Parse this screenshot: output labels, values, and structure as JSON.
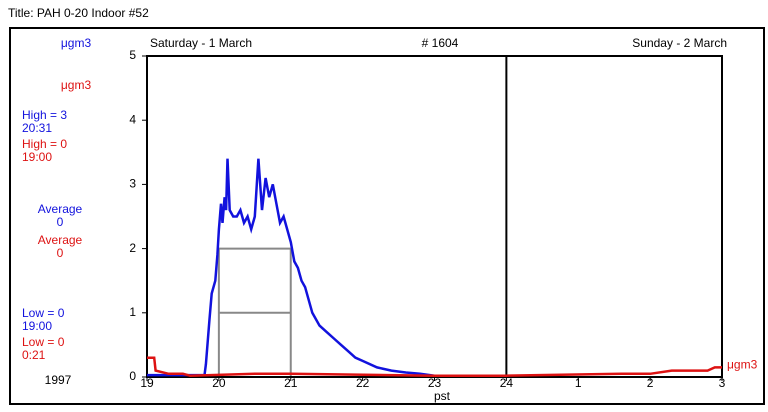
{
  "chart_data": {
    "type": "line",
    "title": "Title:  PAH 0-20 Indoor #52",
    "day_labels": [
      "Saturday - 1 March",
      "Sunday - 2 March"
    ],
    "record": "# 1604",
    "x_label": "pst",
    "year": "1997",
    "xlim": [
      19,
      27
    ],
    "xticks": [
      19,
      20,
      21,
      22,
      23,
      24,
      {
        "value": 25,
        "label": "1"
      },
      {
        "value": 26,
        "label": "2"
      },
      {
        "value": 27,
        "label": "3"
      }
    ],
    "ylim": [
      0,
      5
    ],
    "yticks": [
      0,
      1,
      2,
      3,
      4,
      5
    ],
    "midnight": 24,
    "series": [
      {
        "name": "μgm3",
        "color": "#1212dd",
        "x": [
          19,
          19.8,
          19.82,
          19.87,
          19.9,
          19.95,
          19.98,
          20.0,
          20.03,
          20.05,
          20.08,
          20.1,
          20.12,
          20.15,
          20.2,
          20.25,
          20.3,
          20.35,
          20.4,
          20.45,
          20.5,
          20.55,
          20.6,
          20.65,
          20.7,
          20.75,
          20.8,
          20.85,
          20.9,
          21.0,
          21.05,
          21.1,
          21.15,
          21.2,
          21.3,
          21.4,
          21.5,
          21.6,
          21.7,
          21.8,
          21.9,
          22.0,
          22.2,
          22.4,
          22.6,
          22.8,
          23.0,
          24.0
        ],
        "values": [
          0.03,
          0.03,
          0.2,
          0.9,
          1.3,
          1.5,
          1.9,
          2.3,
          2.7,
          2.4,
          2.8,
          2.6,
          3.4,
          2.6,
          2.5,
          2.5,
          2.6,
          2.4,
          2.5,
          2.3,
          2.5,
          3.4,
          2.6,
          3.1,
          2.8,
          3.0,
          2.7,
          2.4,
          2.5,
          2.1,
          1.8,
          1.7,
          1.5,
          1.4,
          1.0,
          0.8,
          0.7,
          0.6,
          0.5,
          0.4,
          0.3,
          0.25,
          0.15,
          0.1,
          0.07,
          0.05,
          0.02,
          0.02
        ]
      },
      {
        "name": "μgm3",
        "color": "#dd1212",
        "x": [
          19.0,
          19.1,
          19.12,
          19.3,
          19.5,
          19.6,
          20.5,
          21.0,
          23.0,
          24.0,
          25.6,
          26.0,
          26.3,
          26.8,
          26.9,
          27.0
        ],
        "values": [
          0.3,
          0.3,
          0.1,
          0.05,
          0.05,
          0.02,
          0.05,
          0.05,
          0.02,
          0.02,
          0.05,
          0.05,
          0.1,
          0.1,
          0.15,
          0.15
        ]
      }
    ],
    "stats": [
      {
        "lines": [
          "High = 3",
          "20:31"
        ],
        "series": 0
      },
      {
        "lines": [
          "High = 0",
          "19:00"
        ],
        "series": 1
      },
      {
        "lines": [
          "Average",
          "0"
        ],
        "series": 0
      },
      {
        "lines": [
          "Average",
          "0"
        ],
        "series": 1
      },
      {
        "lines": [
          "Low = 0",
          "19:00"
        ],
        "series": 0
      },
      {
        "lines": [
          "Low = 0",
          "0:21"
        ],
        "series": 1
      }
    ]
  }
}
